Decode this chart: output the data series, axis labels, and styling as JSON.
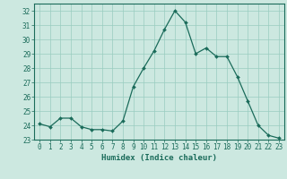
{
  "x": [
    0,
    1,
    2,
    3,
    4,
    5,
    6,
    7,
    8,
    9,
    10,
    11,
    12,
    13,
    14,
    15,
    16,
    17,
    18,
    19,
    20,
    21,
    22,
    23
  ],
  "y": [
    24.1,
    23.9,
    24.5,
    24.5,
    23.9,
    23.7,
    23.7,
    23.6,
    24.3,
    26.7,
    28.0,
    29.2,
    30.7,
    32.0,
    31.2,
    29.0,
    29.4,
    28.8,
    28.8,
    27.4,
    25.7,
    24.0,
    23.3,
    23.1
  ],
  "line_color": "#1a6b5a",
  "marker": "D",
  "markersize": 2.0,
  "linewidth": 0.9,
  "bg_color": "#cce8e0",
  "grid_color": "#99ccc0",
  "xlabel": "Humidex (Indice chaleur)",
  "ylim": [
    23,
    32.5
  ],
  "yticks": [
    23,
    24,
    25,
    26,
    27,
    28,
    29,
    30,
    31,
    32
  ],
  "xticks": [
    0,
    1,
    2,
    3,
    4,
    5,
    6,
    7,
    8,
    9,
    10,
    11,
    12,
    13,
    14,
    15,
    16,
    17,
    18,
    19,
    20,
    21,
    22,
    23
  ],
  "tick_fontsize": 5.5,
  "xlabel_fontsize": 6.5,
  "tick_color": "#1a6b5a",
  "axis_color": "#1a6b5a"
}
